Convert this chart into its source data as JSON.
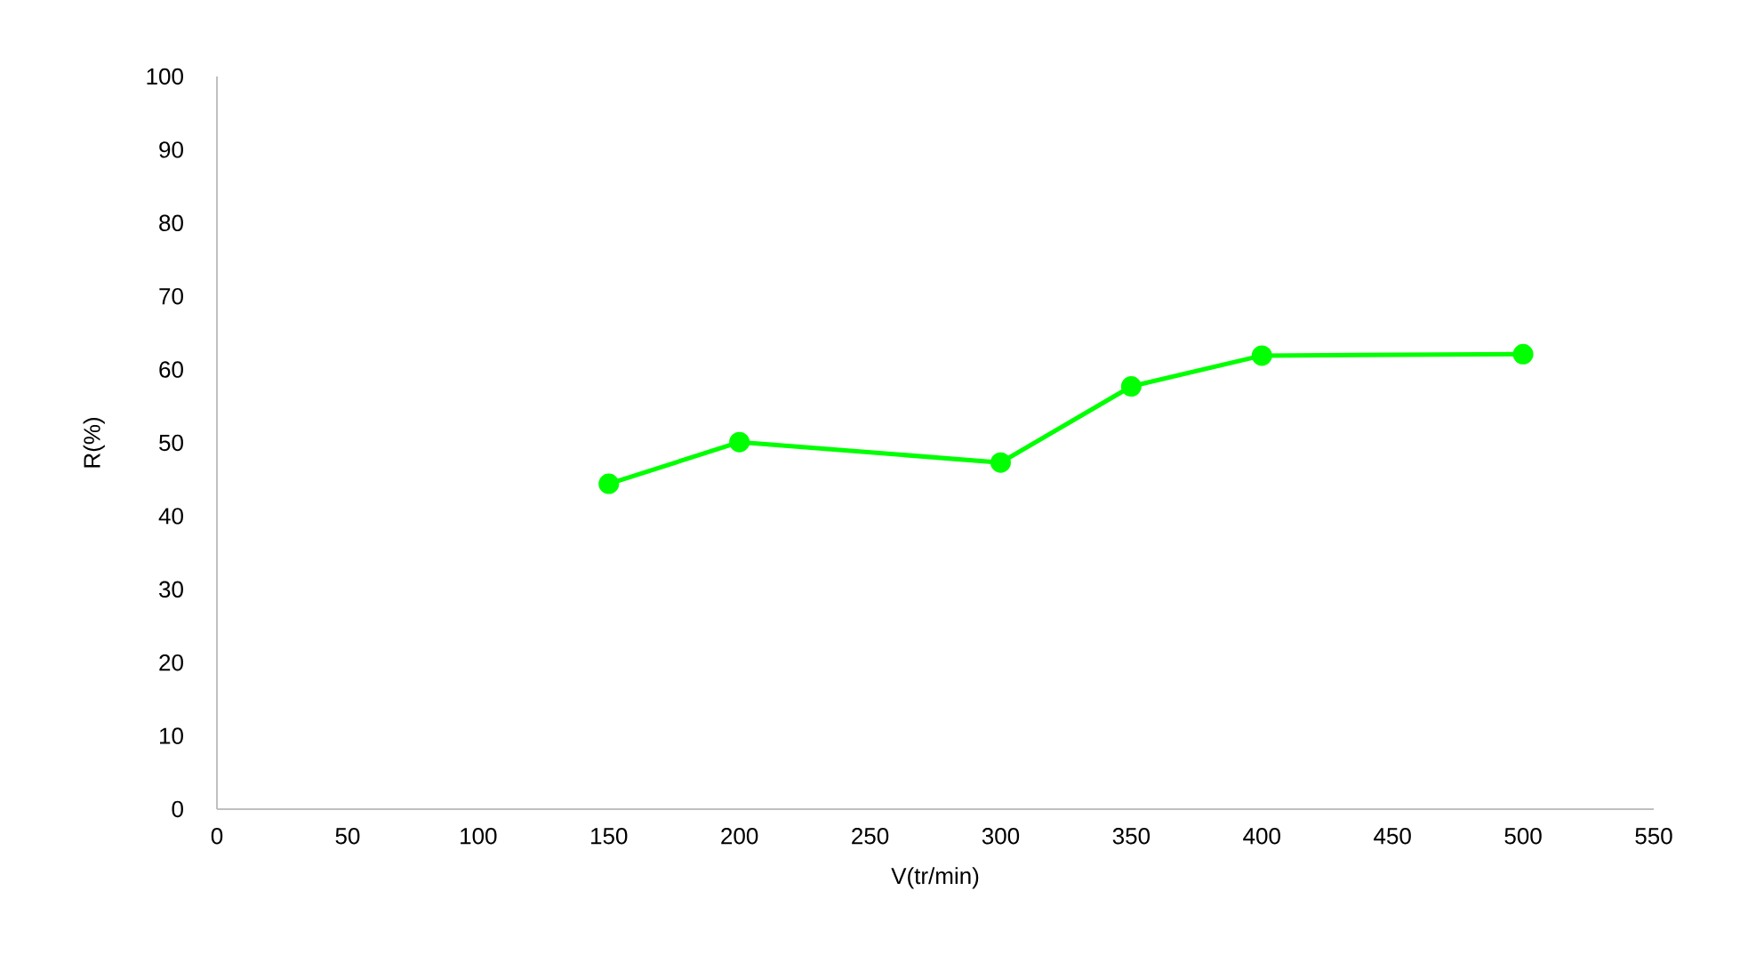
{
  "chart_data": {
    "type": "line",
    "xlabel": "V(tr/min)",
    "ylabel": "R(%)",
    "x": [
      150,
      200,
      300,
      350,
      400,
      500
    ],
    "series": [
      {
        "color": "#00ff00",
        "values": [
          44.4,
          50.1,
          47.3,
          57.7,
          61.9,
          62.1
        ]
      }
    ],
    "xlim": [
      0,
      550
    ],
    "xticks": [
      0,
      50,
      100,
      150,
      200,
      250,
      300,
      350,
      400,
      450,
      500,
      550
    ],
    "ylim": [
      0,
      100
    ],
    "yticks": [
      0,
      10,
      20,
      30,
      40,
      50,
      60,
      70,
      80,
      90,
      100
    ],
    "marker": "circle",
    "line_style": "solid",
    "grid": false,
    "legend": false
  }
}
